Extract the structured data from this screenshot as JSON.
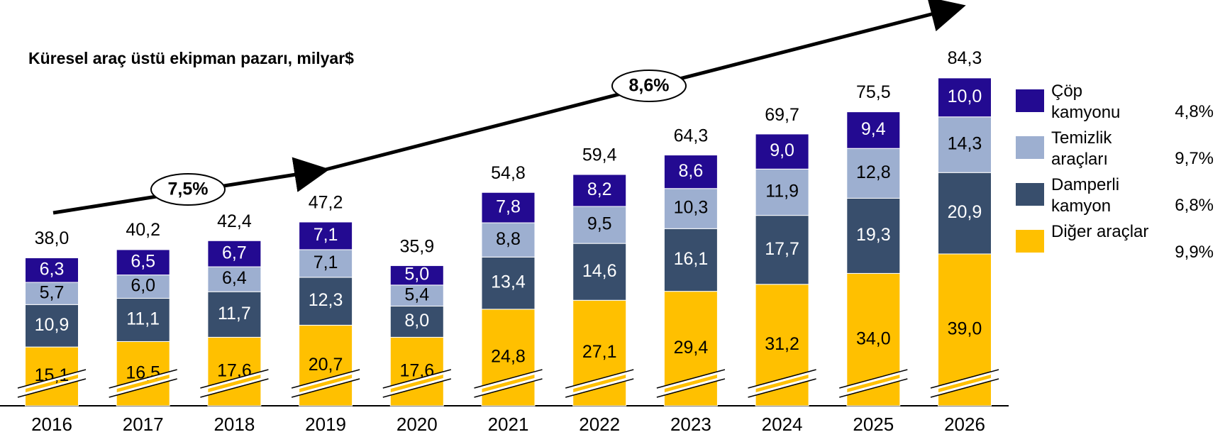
{
  "chart_data": {
    "type": "stacked_bar",
    "subtitle": "Küresel araç üstü ekipman pazarı, milyar$",
    "categories": [
      "2016",
      "2017",
      "2018",
      "2019",
      "2020",
      "2021",
      "2022",
      "2023",
      "2024",
      "2025",
      "2026"
    ],
    "series": [
      {
        "name": "Diğer araçlar",
        "color": "#ffc000",
        "cagr": "9,9%",
        "values": [
          15.1,
          16.5,
          17.6,
          20.7,
          17.6,
          24.8,
          27.1,
          29.4,
          31.2,
          34.0,
          39.0
        ],
        "value_labels": [
          "15,1",
          "16,5",
          "17,6",
          "20,7",
          "17,6",
          "24,8",
          "27,1",
          "29,4",
          "31,2",
          "34,0",
          "39,0"
        ]
      },
      {
        "name": "Damperli kamyon",
        "color": "#384e6c",
        "cagr": "6,8%",
        "values": [
          10.9,
          11.1,
          11.7,
          12.3,
          8.0,
          13.4,
          14.6,
          16.1,
          17.7,
          19.3,
          20.9
        ],
        "value_labels": [
          "10,9",
          "11,1",
          "11,7",
          "12,3",
          "8,0",
          "13,4",
          "14,6",
          "16,1",
          "17,7",
          "19,3",
          "20,9"
        ]
      },
      {
        "name": "Temizlik araçları",
        "color": "#9dafd0",
        "cagr": "9,7%",
        "values": [
          5.7,
          6.0,
          6.4,
          7.1,
          5.4,
          8.8,
          9.5,
          10.3,
          11.9,
          12.8,
          14.3
        ],
        "value_labels": [
          "5,7",
          "6,0",
          "6,4",
          "7,1",
          "5,4",
          "8,8",
          "9,5",
          "10,3",
          "11,9",
          "12,8",
          "14,3"
        ]
      },
      {
        "name": "Çöp kamyonu",
        "color": "#230a91",
        "cagr": "4,8%",
        "values": [
          6.3,
          6.5,
          6.7,
          7.1,
          5.0,
          7.8,
          8.2,
          8.6,
          9.0,
          9.4,
          10.0
        ],
        "value_labels": [
          "6,3",
          "6,5",
          "6,7",
          "7,1",
          "5,0",
          "7,8",
          "8,2",
          "8,6",
          "9,0",
          "9,4",
          "10,0"
        ]
      }
    ],
    "totals": [
      38.0,
      40.2,
      42.4,
      47.2,
      35.9,
      54.8,
      59.4,
      64.3,
      69.7,
      75.5,
      84.3
    ],
    "total_labels": [
      "38,0",
      "40,2",
      "42,4",
      "47,2",
      "35,9",
      "54,8",
      "59,4",
      "64,3",
      "69,7",
      "75,5",
      "84,3"
    ],
    "annotations": [
      "7,5%",
      "8,6%"
    ],
    "ylim": [
      0,
      86
    ]
  }
}
